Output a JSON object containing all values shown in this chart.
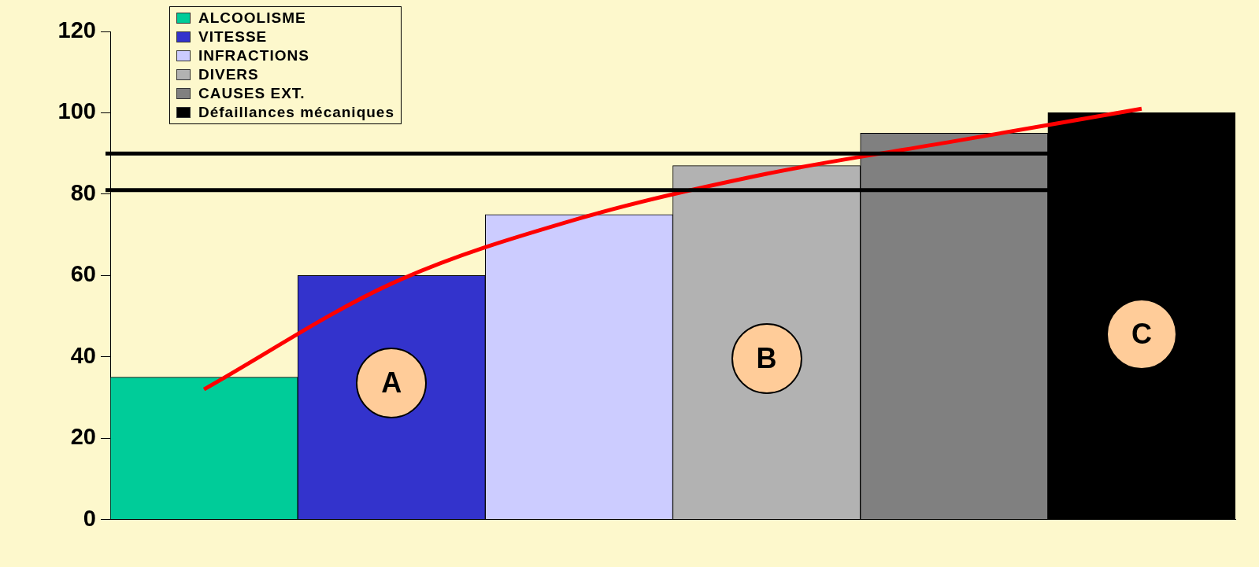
{
  "chart_data": {
    "type": "bar",
    "categories": [
      null,
      null,
      null,
      null,
      null,
      null
    ],
    "series": [
      {
        "name": "ALCOOLISME",
        "color": "#00cc99",
        "values": [
          35,
          null,
          null,
          null,
          null,
          null
        ]
      },
      {
        "name": "VITESSE",
        "color": "#3333cc",
        "values": [
          null,
          60,
          null,
          null,
          null,
          null
        ]
      },
      {
        "name": "INFRACTIONS",
        "color": "#ccccff",
        "values": [
          null,
          null,
          75,
          null,
          null,
          null
        ]
      },
      {
        "name": "DIVERS",
        "color": "#b2b2b2",
        "values": [
          null,
          null,
          null,
          87,
          null,
          null
        ]
      },
      {
        "name": "CAUSES EXT.",
        "color": "#808080",
        "values": [
          null,
          null,
          null,
          null,
          95,
          null
        ]
      },
      {
        "name": "Défaillances mécaniques",
        "color": "#000000",
        "values": [
          null,
          null,
          null,
          null,
          null,
          100
        ]
      },
      {
        "type": "line",
        "color": "#ff0000",
        "values": [
          32,
          58,
          74,
          85,
          93,
          101
        ]
      }
    ],
    "ylim": [
      0,
      120
    ],
    "yticks": [
      0,
      20,
      40,
      60,
      80,
      100,
      120
    ],
    "grid": false,
    "legend": "top left",
    "ref_lines": [
      {
        "axis": "y",
        "value": 90,
        "color": "#000000"
      },
      {
        "axis": "y",
        "value": 81,
        "color": "#000000"
      }
    ],
    "annotations": [
      "A",
      "B",
      "C"
    ]
  }
}
